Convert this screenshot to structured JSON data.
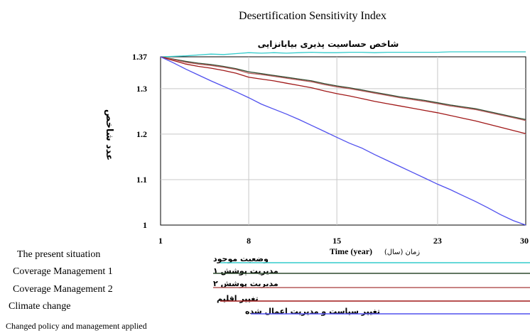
{
  "chart_data": {
    "type": "line",
    "title": "Desertification Sensitivity Index",
    "subtitle": "شاخص حساسیت پذیری بیابانزایی",
    "xlabel": "Time (year)",
    "xlabel_fa": "زمان (سال)",
    "ylabel": "عدد شاخص",
    "xlim": [
      1,
      30
    ],
    "ylim": [
      1.0,
      1.37
    ],
    "xticks": [
      "1",
      "8",
      "15",
      "23",
      "30"
    ],
    "yticks": [
      "1",
      "1.1",
      "1.2",
      "1.3",
      "1.37"
    ],
    "grid": true,
    "legend_position": "bottom",
    "x": [
      1,
      2,
      3,
      4,
      5,
      6,
      7,
      8,
      9,
      10,
      11,
      12,
      13,
      14,
      15,
      16,
      17,
      18,
      19,
      20,
      21,
      22,
      23,
      24,
      25,
      26,
      27,
      28,
      29,
      30
    ],
    "series": [
      {
        "name": "The present situation",
        "name_fa": "وضعیت موجود",
        "color": "#33cccc",
        "values": [
          1.37,
          1.371,
          1.372,
          1.374,
          1.376,
          1.375,
          1.377,
          1.379,
          1.378,
          1.379,
          1.378,
          1.379,
          1.38,
          1.379,
          1.379,
          1.38,
          1.38,
          1.379,
          1.38,
          1.38,
          1.38,
          1.38,
          1.38,
          1.381,
          1.381,
          1.381,
          1.381,
          1.381,
          1.381,
          1.381
        ]
      },
      {
        "name": "Coverage Management 1",
        "name_fa": "مدیریت پوشش ۱",
        "color": "#2e4a2e",
        "values": [
          1.37,
          1.365,
          1.36,
          1.356,
          1.353,
          1.349,
          1.344,
          1.337,
          1.333,
          1.329,
          1.325,
          1.321,
          1.317,
          1.311,
          1.306,
          1.302,
          1.297,
          1.292,
          1.287,
          1.282,
          1.278,
          1.274,
          1.269,
          1.264,
          1.26,
          1.256,
          1.25,
          1.244,
          1.238,
          1.232
        ]
      },
      {
        "name": "Coverage Management 2",
        "name_fa": "مدیریت پوشش ۲",
        "color": "#b55a5a",
        "values": [
          1.37,
          1.364,
          1.358,
          1.354,
          1.351,
          1.347,
          1.342,
          1.334,
          1.331,
          1.327,
          1.323,
          1.319,
          1.315,
          1.309,
          1.304,
          1.3,
          1.295,
          1.29,
          1.285,
          1.28,
          1.276,
          1.272,
          1.267,
          1.262,
          1.258,
          1.254,
          1.248,
          1.242,
          1.236,
          1.23
        ]
      },
      {
        "name": "Climate change",
        "name_fa": "تغییر اقلیم",
        "color": "#a01818",
        "values": [
          1.37,
          1.362,
          1.354,
          1.349,
          1.345,
          1.34,
          1.334,
          1.325,
          1.321,
          1.317,
          1.312,
          1.307,
          1.302,
          1.295,
          1.289,
          1.284,
          1.278,
          1.272,
          1.267,
          1.262,
          1.257,
          1.252,
          1.247,
          1.241,
          1.235,
          1.229,
          1.222,
          1.215,
          1.208,
          1.201
        ]
      },
      {
        "name": "Changed policy and management applied",
        "name_fa": "تغییر سیاست و مدیریت اعمال شده",
        "color": "#5050ee",
        "values": [
          1.37,
          1.357,
          1.343,
          1.33,
          1.317,
          1.305,
          1.293,
          1.28,
          1.266,
          1.255,
          1.244,
          1.232,
          1.219,
          1.206,
          1.193,
          1.18,
          1.169,
          1.155,
          1.142,
          1.129,
          1.116,
          1.103,
          1.09,
          1.078,
          1.065,
          1.052,
          1.038,
          1.023,
          1.01,
          1.0
        ]
      }
    ]
  }
}
